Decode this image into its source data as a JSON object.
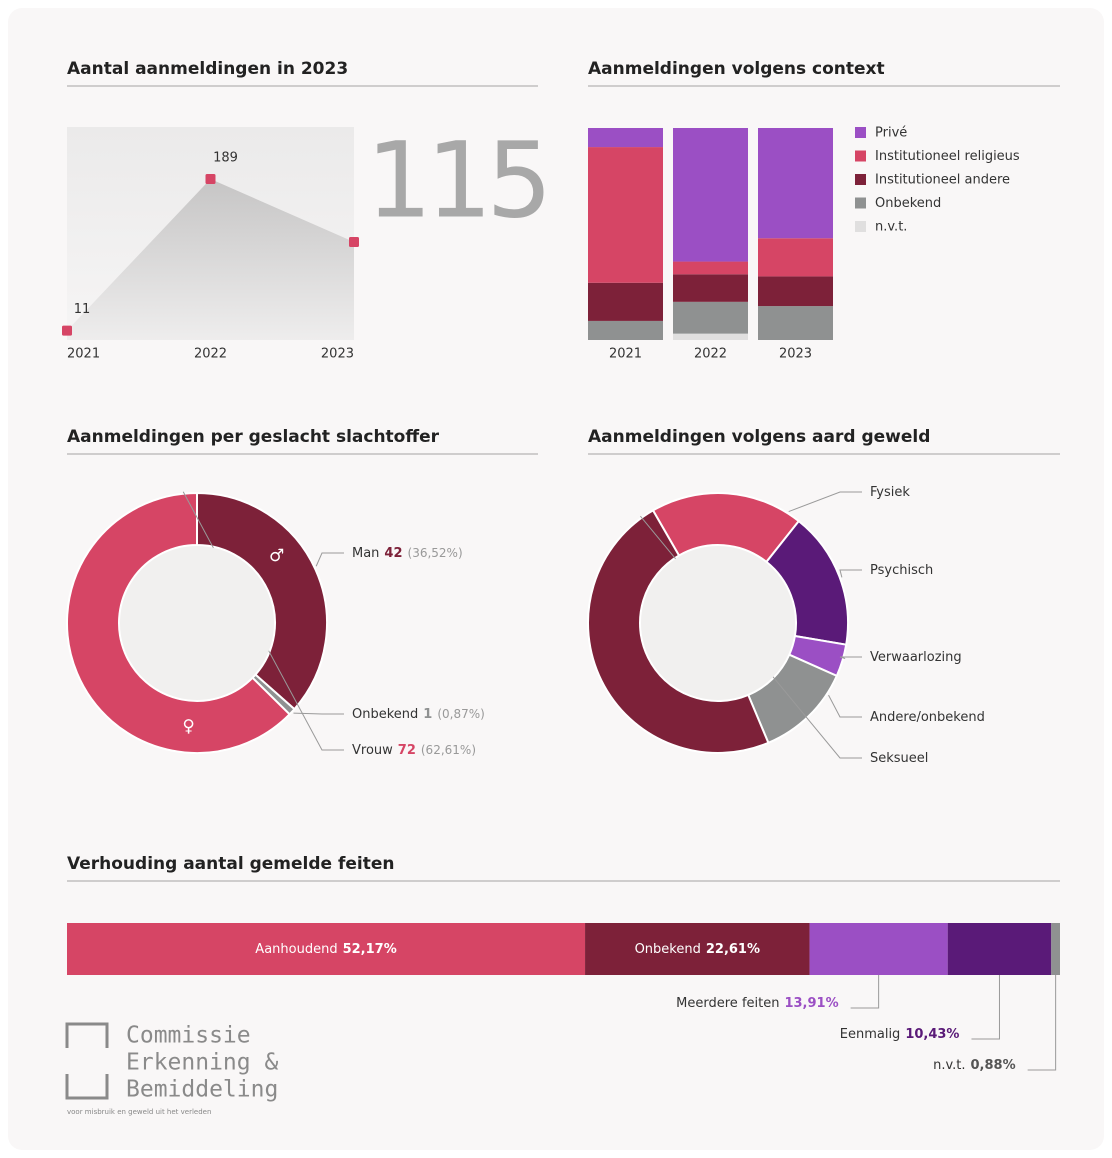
{
  "chart_data": [
    {
      "type": "area",
      "title": "Aantal aanmeldingen in 2023",
      "categories": [
        "2021",
        "2022",
        "2023"
      ],
      "values": [
        11,
        189,
        115
      ],
      "ylim": [
        0,
        250
      ],
      "color": "#d64565"
    },
    {
      "type": "stacked_bar",
      "title": "Aanmeldingen volgens context",
      "categories": [
        "2021",
        "2022",
        "2023"
      ],
      "ylim": [
        0,
        100
      ],
      "series": [
        {
          "name": "Privé",
          "color": "#9b4fc4",
          "values": [
            9,
            63,
            52
          ]
        },
        {
          "name": "Institutioneel religieus",
          "color": "#d64565",
          "values": [
            64,
            6,
            18
          ]
        },
        {
          "name": "Institutioneel andere",
          "color": "#7d2139",
          "values": [
            18,
            13,
            14
          ]
        },
        {
          "name": "Onbekend",
          "color": "#8f9191",
          "values": [
            9,
            15,
            16
          ]
        },
        {
          "name": "n.v.t.",
          "color": "#e0dfdf",
          "values": [
            0,
            3,
            0
          ]
        }
      ]
    },
    {
      "type": "donut",
      "title": "Aanmeldingen per geslacht slachtoffer",
      "categories": [
        "Man",
        "Onbekend",
        "Vrouw"
      ],
      "values": [
        42,
        1,
        72
      ],
      "percent_labels": [
        "(36,52%)",
        "(0,87%)",
        "(62,61%)"
      ],
      "symbols": [
        "♂",
        null,
        "♀"
      ],
      "colors": [
        "#7d2139",
        "#8f9191",
        "#d64565"
      ]
    },
    {
      "type": "donut",
      "title": "Aanmeldingen volgens aard geweld",
      "categories": [
        "Fysiek",
        "Psychisch",
        "Verwaarlozing",
        "Andere/onbekend",
        "Seksueel"
      ],
      "values": [
        19,
        17,
        4,
        12,
        48
      ],
      "colors": [
        "#d64565",
        "#5a1a78",
        "#9b4fc4",
        "#8f9191",
        "#7d2139"
      ]
    },
    {
      "type": "proportion_bar",
      "title": "Verhouding aantal gemelde feiten",
      "categories": [
        "Aanhoudend",
        "Onbekend",
        "Meerdere feiten",
        "Eenmalig",
        "n.v.t."
      ],
      "values": [
        52.17,
        22.61,
        13.91,
        10.43,
        0.88
      ],
      "value_labels": [
        "52,17%",
        "22,61%",
        "13,91%",
        "10,43%",
        "0,88%"
      ],
      "xlim": [
        0,
        100
      ],
      "colors": [
        "#d64565",
        "#7d2139",
        "#9b4fc4",
        "#5a1a78",
        "#8f9191"
      ]
    }
  ],
  "logo": {
    "lines": [
      "Commissie",
      "Erkenning &",
      "Bemiddeling"
    ],
    "tagline": "voor misbruik en geweld uit het verleden"
  }
}
